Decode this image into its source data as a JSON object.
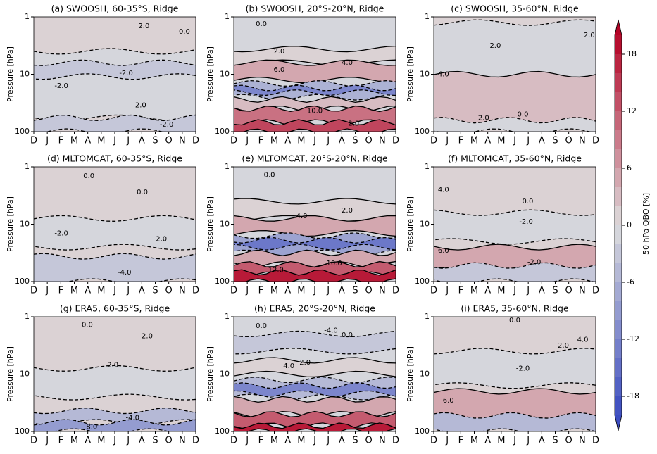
{
  "chart_data": {
    "type": "contour",
    "ylabel": "Pressure [hPa]",
    "categories": [
      "D",
      "J",
      "F",
      "M",
      "A",
      "M",
      "J",
      "J",
      "A",
      "S",
      "O",
      "N",
      "D"
    ],
    "ylim": [
      100,
      1
    ],
    "yticks": [
      1,
      10,
      100
    ],
    "log_y": true,
    "colorbar": {
      "label": "50 hPa QBO [%]",
      "clim": [
        -20,
        20
      ],
      "levels": [
        -20,
        -18,
        -16,
        -14,
        -12,
        -10,
        -8,
        -6,
        -4,
        -2,
        0,
        2,
        4,
        6,
        8,
        10,
        12,
        14,
        16,
        18,
        20
      ],
      "ticks": [
        -18,
        -12,
        -6,
        0,
        6,
        12,
        18
      ],
      "extend": "both"
    },
    "panels": [
      {
        "title": "(a) SWOOSH, 60-35$^\\circ$S, Ridge",
        "contour_labels": [
          {
            "value": 2,
            "label": "2.0"
          },
          {
            "value": 0,
            "label": "0.0"
          },
          {
            "value": -2,
            "label": "-2.0"
          },
          {
            "value": -2,
            "label": "-2.0"
          },
          {
            "value": 2,
            "label": "2.0"
          },
          {
            "value": -2,
            "label": "-2.0"
          }
        ]
      },
      {
        "title": "(b) SWOOSH, 20$^\\circ$S-20$^\\circ$N, Ridge",
        "contour_labels": [
          {
            "value": 0,
            "label": "0.0"
          },
          {
            "value": 2,
            "label": "2.0"
          },
          {
            "value": 6,
            "label": "6.0"
          },
          {
            "value": 4,
            "label": "4.0"
          },
          {
            "value": 10,
            "label": "10.0"
          },
          {
            "value": 2,
            "label": "2.0"
          }
        ]
      },
      {
        "title": "(c) SWOOSH, 35-60$^\\circ$N, Ridge",
        "contour_labels": [
          {
            "value": 2,
            "label": "2.0"
          },
          {
            "value": 2,
            "label": "2.0"
          },
          {
            "value": 4,
            "label": "4.0"
          },
          {
            "value": 0,
            "label": "0.0"
          },
          {
            "value": -2,
            "label": "-2.0"
          }
        ]
      },
      {
        "title": "(d) MLTOMCAT, 60-35$^\\circ$S, Ridge",
        "contour_labels": [
          {
            "value": 0,
            "label": "0.0"
          },
          {
            "value": 0,
            "label": "0.0"
          },
          {
            "value": -2,
            "label": "-2.0"
          },
          {
            "value": -2,
            "label": "-2.0"
          },
          {
            "value": -4,
            "label": "-4.0"
          }
        ]
      },
      {
        "title": "(e) MLTOMCAT, 20$^\\circ$S-20$^\\circ$N, Ridge",
        "contour_labels": [
          {
            "value": 0,
            "label": "0.0"
          },
          {
            "value": 4,
            "label": "4.0"
          },
          {
            "value": 2,
            "label": "2.0"
          },
          {
            "value": 12,
            "label": "12.0"
          },
          {
            "value": 10,
            "label": "10.0"
          }
        ]
      },
      {
        "title": "(f) MLTOMCAT, 35-60$^\\circ$N, Ridge",
        "contour_labels": [
          {
            "value": 4,
            "label": "4.0"
          },
          {
            "value": 0,
            "label": "0.0"
          },
          {
            "value": -2,
            "label": "-2.0"
          },
          {
            "value": 6,
            "label": "6.0"
          },
          {
            "value": -2,
            "label": "-2.0"
          }
        ]
      },
      {
        "title": "(g) ERA5, 60-35$^\\circ$S, Ridge",
        "contour_labels": [
          {
            "value": 0,
            "label": "0.0"
          },
          {
            "value": 2,
            "label": "2.0"
          },
          {
            "value": -2,
            "label": "-2.0"
          },
          {
            "value": -4,
            "label": "-4.0"
          },
          {
            "value": -8,
            "label": "-8.0"
          }
        ]
      },
      {
        "title": "(h) ERA5, 20$^\\circ$S-20$^\\circ$N, Ridge",
        "contour_labels": [
          {
            "value": 0,
            "label": "0.0"
          },
          {
            "value": -4,
            "label": "-4.0"
          },
          {
            "value": 4,
            "label": "4.0"
          },
          {
            "value": 2,
            "label": "2.0"
          },
          {
            "value": 0,
            "label": "0.0"
          }
        ]
      },
      {
        "title": "(i) ERA5, 35-60$^\\circ$N, Ridge",
        "contour_labels": [
          {
            "value": 0,
            "label": "0.0"
          },
          {
            "value": 2,
            "label": "2.0"
          },
          {
            "value": 4,
            "label": "4.0"
          },
          {
            "value": -2,
            "label": "-2.0"
          },
          {
            "value": 6,
            "label": "6.0"
          }
        ]
      }
    ]
  }
}
